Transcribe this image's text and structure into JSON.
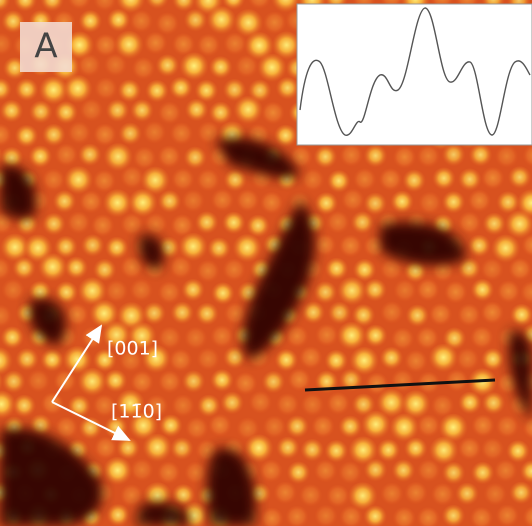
{
  "panel_label": "A",
  "annotations": {
    "direction_1": "[001]",
    "direction_2": "[11̄0]"
  }
}
